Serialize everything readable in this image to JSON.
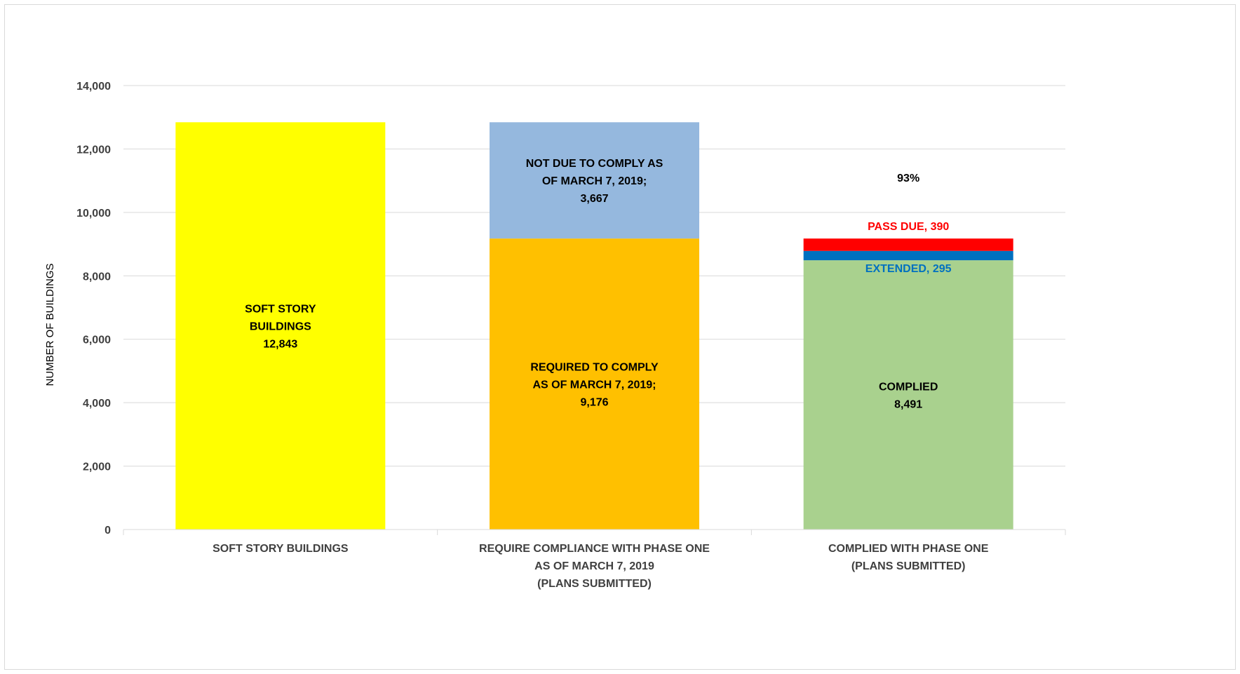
{
  "chart_data": {
    "type": "bar",
    "stacked": true,
    "title": "",
    "xlabel": "",
    "ylabel": "NUMBER OF BUILDINGS",
    "ylim": [
      0,
      14000
    ],
    "grid": true,
    "legend": "none",
    "yticks": [
      "0",
      "2,000",
      "4,000",
      "6,000",
      "8,000",
      "10,000",
      "12,000",
      "14,000"
    ],
    "ytick_values": [
      0,
      2000,
      4000,
      6000,
      8000,
      10000,
      12000,
      14000
    ],
    "categories": [
      [
        "SOFT STORY BUILDINGS"
      ],
      [
        "REQUIRE COMPLIANCE WITH PHASE ONE",
        "AS OF MARCH 7, 2019",
        "(PLANS SUBMITTED)"
      ],
      [
        "COMPLIED WITH PHASE ONE",
        "(PLANS SUBMITTED)"
      ]
    ],
    "segments": [
      {
        "category_index": 0,
        "base": 0,
        "value": 12843,
        "color": "#ffff00",
        "label_lines": [
          "SOFT STORY",
          "BUILDINGS",
          "12,843"
        ],
        "label_color": "#000000",
        "label_position": "center"
      },
      {
        "category_index": 1,
        "base": 0,
        "value": 9176,
        "color": "#ffc000",
        "label_lines": [
          "REQUIRED TO COMPLY",
          "AS OF MARCH 7, 2019;",
          "9,176"
        ],
        "label_color": "#000000",
        "label_position": "center"
      },
      {
        "category_index": 1,
        "base": 9176,
        "value": 3667,
        "color": "#95b8de",
        "label_lines": [
          "NOT DUE TO COMPLY AS",
          "OF MARCH 7, 2019;",
          "3,667"
        ],
        "label_color": "#000000",
        "label_position": "center"
      },
      {
        "category_index": 2,
        "base": 0,
        "value": 8491,
        "color": "#a9d18e",
        "label_lines": [
          "COMPLIED",
          "8,491"
        ],
        "label_color": "#000000",
        "label_position": "center"
      },
      {
        "category_index": 2,
        "base": 8491,
        "value": 295,
        "color": "#0070c0",
        "label_lines": [
          "EXTENDED, 295"
        ],
        "label_color": "#0070c0",
        "label_position": "below"
      },
      {
        "category_index": 2,
        "base": 8786,
        "value": 390,
        "color": "#ff0000",
        "label_lines": [
          "PASS DUE, 390"
        ],
        "label_color": "#ff0000",
        "label_position": "above"
      }
    ],
    "annotations": [
      {
        "category_index": 2,
        "text": "93%",
        "y": 11100,
        "color": "#000000"
      }
    ]
  }
}
